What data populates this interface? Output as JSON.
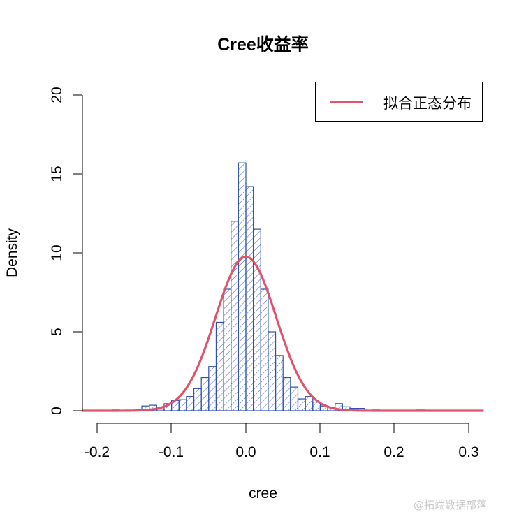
{
  "title": "Cree收益率",
  "xlabel": "cree",
  "ylabel": "Density",
  "legend": {
    "label": "拟合正态分布",
    "color": "#DF536B"
  },
  "watermark": "@拓端数据部落",
  "colors": {
    "bar_border": "#2E4FB5",
    "hatch": "#2E4FB5",
    "curve": "#DF536B",
    "axis": "#000000"
  },
  "x_ticks": [
    "-0.2",
    "-0.1",
    "0.0",
    "0.1",
    "0.2",
    "0.3"
  ],
  "y_ticks": [
    "0",
    "5",
    "10",
    "15",
    "20"
  ],
  "chart_data": {
    "type": "bar",
    "subtype": "histogram_with_density_curve",
    "title": "Cree收益率",
    "xlabel": "cree",
    "ylabel": "Density",
    "xlim": [
      -0.22,
      0.32
    ],
    "ylim": [
      0,
      20
    ],
    "bin_width": 0.01,
    "x_ticks": [
      -0.2,
      -0.1,
      0.0,
      0.1,
      0.2,
      0.3
    ],
    "y_ticks": [
      0,
      5,
      10,
      15,
      20
    ],
    "grid": false,
    "legend_position": "topright",
    "bins": [
      {
        "left": -0.18,
        "right": -0.17,
        "density": 0.05
      },
      {
        "left": -0.14,
        "right": -0.13,
        "density": 0.3
      },
      {
        "left": -0.13,
        "right": -0.12,
        "density": 0.35
      },
      {
        "left": -0.12,
        "right": -0.11,
        "density": 0.1
      },
      {
        "left": -0.11,
        "right": -0.1,
        "density": 0.45
      },
      {
        "left": -0.1,
        "right": -0.09,
        "density": 0.65
      },
      {
        "left": -0.09,
        "right": -0.08,
        "density": 0.7
      },
      {
        "left": -0.08,
        "right": -0.07,
        "density": 0.9
      },
      {
        "left": -0.07,
        "right": -0.06,
        "density": 1.4
      },
      {
        "left": -0.06,
        "right": -0.05,
        "density": 2.1
      },
      {
        "left": -0.05,
        "right": -0.04,
        "density": 2.8
      },
      {
        "left": -0.04,
        "right": -0.03,
        "density": 5.6
      },
      {
        "left": -0.03,
        "right": -0.02,
        "density": 7.7
      },
      {
        "left": -0.02,
        "right": -0.01,
        "density": 12.0
      },
      {
        "left": -0.01,
        "right": 0.0,
        "density": 15.7
      },
      {
        "left": 0.0,
        "right": 0.01,
        "density": 14.2
      },
      {
        "left": 0.01,
        "right": 0.02,
        "density": 11.5
      },
      {
        "left": 0.02,
        "right": 0.03,
        "density": 7.7
      },
      {
        "left": 0.03,
        "right": 0.04,
        "density": 5.0
      },
      {
        "left": 0.04,
        "right": 0.05,
        "density": 3.5
      },
      {
        "left": 0.05,
        "right": 0.06,
        "density": 2.1
      },
      {
        "left": 0.06,
        "right": 0.07,
        "density": 1.5
      },
      {
        "left": 0.07,
        "right": 0.08,
        "density": 0.75
      },
      {
        "left": 0.08,
        "right": 0.09,
        "density": 0.9
      },
      {
        "left": 0.09,
        "right": 0.1,
        "density": 0.55
      },
      {
        "left": 0.1,
        "right": 0.11,
        "density": 0.3
      },
      {
        "left": 0.11,
        "right": 0.12,
        "density": 0.2
      },
      {
        "left": 0.12,
        "right": 0.13,
        "density": 0.45
      },
      {
        "left": 0.13,
        "right": 0.14,
        "density": 0.25
      },
      {
        "left": 0.14,
        "right": 0.15,
        "density": 0.15
      },
      {
        "left": 0.15,
        "right": 0.16,
        "density": 0.15
      },
      {
        "left": 0.17,
        "right": 0.18,
        "density": 0.05
      },
      {
        "left": 0.23,
        "right": 0.24,
        "density": 0.05
      }
    ],
    "series": [
      {
        "name": "拟合正态分布",
        "type": "line",
        "distribution": "normal",
        "mean": 0.0,
        "sd": 0.0409,
        "peak_density": 9.75,
        "color": "#DF536B"
      }
    ]
  }
}
